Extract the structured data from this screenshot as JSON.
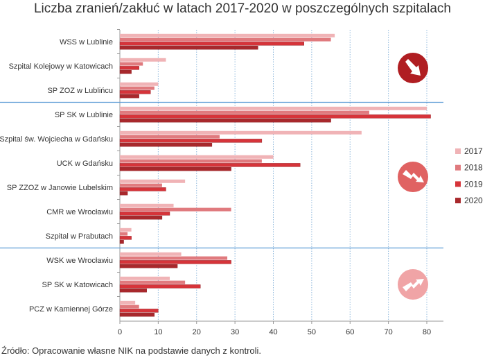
{
  "chart_data": {
    "type": "bar",
    "orientation": "horizontal",
    "title": "Liczba zranień/zakłuć w latach 2017-2020 w poszczególnych szpitalach",
    "xlim": [
      0,
      80
    ],
    "xticks": [
      0,
      10,
      20,
      30,
      40,
      50,
      60,
      70,
      80
    ],
    "grid": "vertical-dotted",
    "legend_position": "right",
    "categories": [
      "WSS w Lublinie",
      "Szpital Kolejowy w Katowicach",
      "SP ZOZ w Lublińcu",
      "SP SK w Lublinie",
      "Szpital św. Wojciecha w Gdańsku",
      "UCK w Gdańsku",
      "SP ZZOZ w Janowie Lubelskim",
      "CMR we Wrocławiu",
      "Szpital w Prabutach",
      "WSK we Wrocławiu",
      "SP SK w Katowicach",
      "PCZ w Kamiennej Górze"
    ],
    "groups": [
      {
        "trend": "decreasing",
        "icon": "arrow-down-right-icon",
        "categories": [
          0,
          1,
          2
        ],
        "color": "#b01e22"
      },
      {
        "trend": "mixed-decreasing",
        "icon": "zigzag-down-icon",
        "categories": [
          3,
          4,
          5,
          6,
          7,
          8
        ],
        "color": "#e06262"
      },
      {
        "trend": "increasing",
        "icon": "zigzag-up-icon",
        "categories": [
          9,
          10,
          11
        ],
        "color": "#f0a4a6"
      }
    ],
    "series": [
      {
        "name": "2017",
        "color": "#f0b3b6",
        "values": [
          56,
          12,
          10,
          80,
          63,
          40,
          17,
          14,
          3,
          16,
          13,
          4
        ]
      },
      {
        "name": "2018",
        "color": "#e07a7e",
        "values": [
          55,
          6,
          9,
          65,
          26,
          37,
          11,
          29,
          2,
          28,
          17,
          5
        ]
      },
      {
        "name": "2019",
        "color": "#d6343a",
        "values": [
          48,
          5,
          8,
          81,
          37,
          47,
          12,
          13,
          3,
          29,
          21,
          10
        ]
      },
      {
        "name": "2020",
        "color": "#a8282c",
        "values": [
          36,
          3,
          5,
          55,
          24,
          29,
          2,
          11,
          1,
          15,
          7,
          9
        ]
      }
    ]
  },
  "source": "Źródło: Opracowanie własne NIK na podstawie danych z kontroli."
}
